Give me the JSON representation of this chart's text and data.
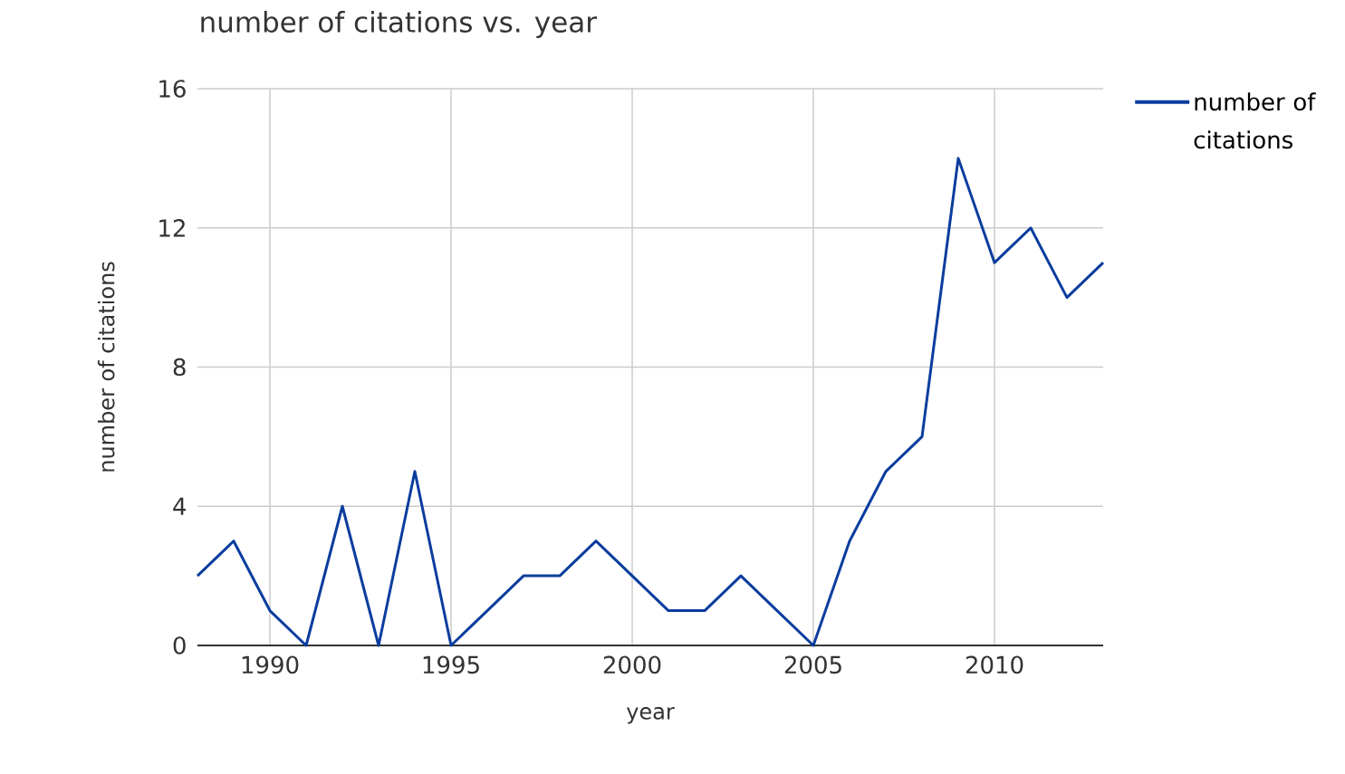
{
  "chart_data": {
    "type": "line",
    "title": "number of citations vs. year",
    "xlabel": "year",
    "ylabel": "number of citations",
    "x": [
      1988,
      1989,
      1990,
      1991,
      1992,
      1993,
      1994,
      1995,
      1996,
      1997,
      1998,
      1999,
      2000,
      2001,
      2002,
      2003,
      2004,
      2005,
      2006,
      2007,
      2008,
      2009,
      2010,
      2011,
      2012,
      2013
    ],
    "series": [
      {
        "name": "number of citations",
        "color": "#0b3d9e",
        "values": [
          2,
          3,
          1,
          0,
          4,
          0,
          5,
          0,
          1,
          2,
          2,
          3,
          2,
          1,
          1,
          2,
          1,
          0,
          3,
          5,
          6,
          14,
          11,
          12,
          10,
          11
        ]
      }
    ],
    "xlim": [
      1988,
      2013
    ],
    "ylim": [
      0,
      16
    ],
    "xticks": [
      1990,
      1995,
      2000,
      2005,
      2010
    ],
    "yticks": [
      0,
      4,
      8,
      12,
      16
    ],
    "grid": true,
    "legend": "top right",
    "marker": "none",
    "line_style": "solid"
  }
}
